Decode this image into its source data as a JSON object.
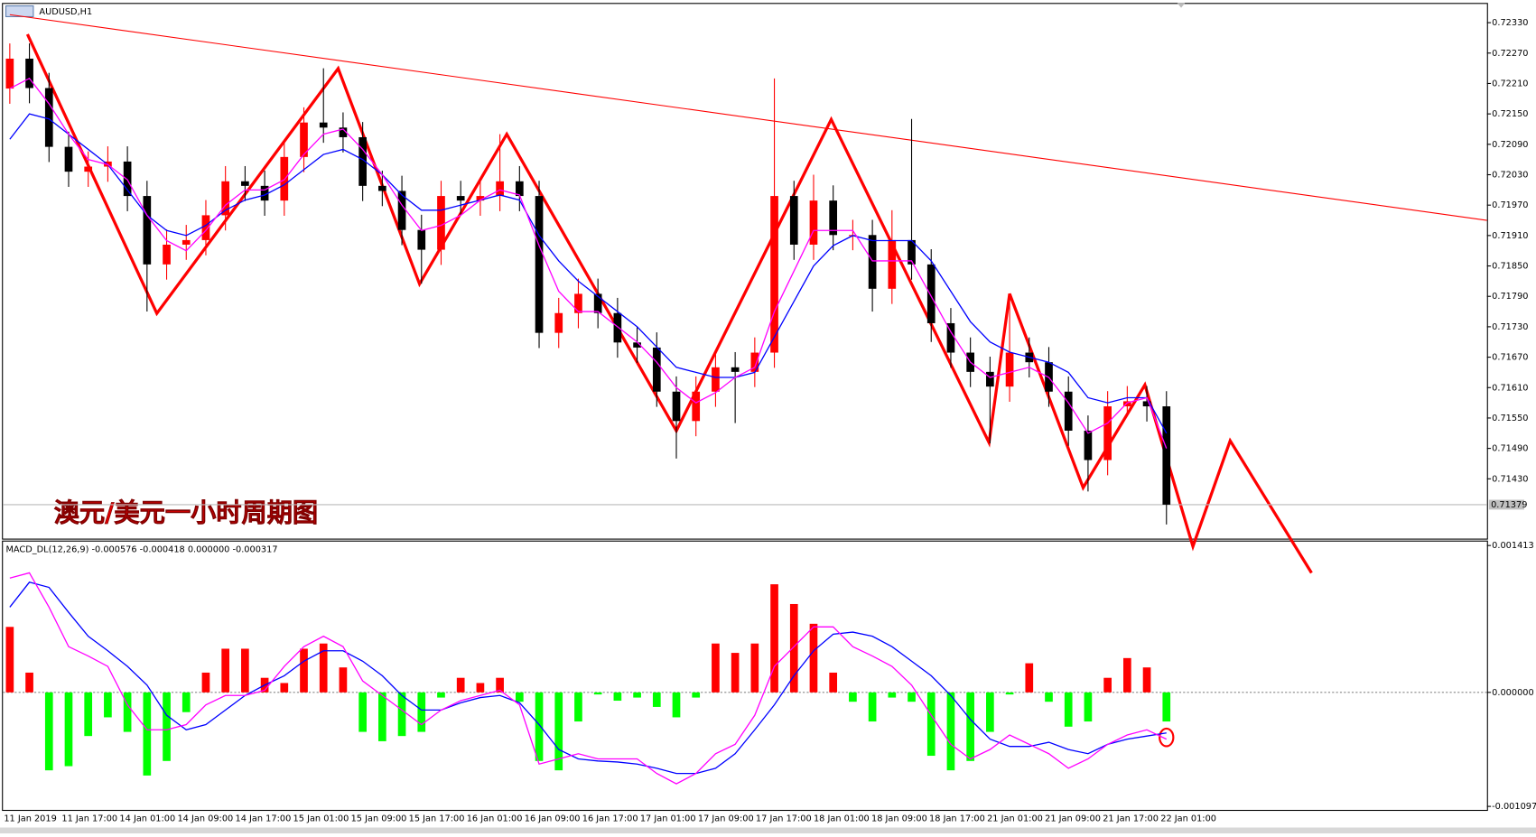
{
  "chart_data": [
    {
      "type": "candlestick",
      "title": "AUDUSD,H1",
      "annotation": "澳元/美元一小时周期图",
      "up_color": "#ff0000",
      "down_color": "#000000",
      "open": [
        0.722,
        0.72259,
        0.72201,
        0.72085,
        0.72036,
        0.72046,
        0.72056,
        0.71988,
        0.71853,
        0.71892,
        0.71901,
        0.7195,
        0.72017,
        0.72008,
        0.71979,
        0.72065,
        0.72133,
        0.72123,
        0.72104,
        0.72008,
        0.71998,
        0.71921,
        0.71882,
        0.71988,
        0.71979,
        0.71988,
        0.72017,
        0.71988,
        0.71718,
        0.71757,
        0.71795,
        0.71757,
        0.71699,
        0.71689,
        0.71602,
        0.71544,
        0.71602,
        0.7165,
        0.71641,
        0.71679,
        0.71988,
        0.71892,
        0.71979,
        0.71911,
        0.71911,
        0.71805,
        0.71901,
        0.71853,
        0.71737,
        0.71679,
        0.71641,
        0.71612,
        0.71679,
        0.7166,
        0.71602,
        0.71525,
        0.71467,
        0.71573,
        0.71583,
        0.71573
      ],
      "high": [
        0.72289,
        0.72289,
        0.72231,
        0.72115,
        0.72076,
        0.72086,
        0.72086,
        0.72018,
        0.71922,
        0.71931,
        0.7198,
        0.72047,
        0.72047,
        0.72038,
        0.72095,
        0.72163,
        0.7224,
        0.72153,
        0.72134,
        0.72038,
        0.72028,
        0.71951,
        0.72018,
        0.72018,
        0.72018,
        0.7211,
        0.72047,
        0.72018,
        0.71787,
        0.71825,
        0.71825,
        0.71787,
        0.71729,
        0.71719,
        0.71632,
        0.71632,
        0.7168,
        0.7168,
        0.71709,
        0.7222,
        0.72018,
        0.7203,
        0.72009,
        0.71941,
        0.71941,
        0.7196,
        0.7214,
        0.71883,
        0.71767,
        0.71709,
        0.71671,
        0.71795,
        0.71709,
        0.7169,
        0.71632,
        0.71555,
        0.71603,
        0.71613,
        0.71613,
        0.71603
      ],
      "low": [
        0.7217,
        0.72171,
        0.72055,
        0.72006,
        0.72006,
        0.72016,
        0.71958,
        0.7176,
        0.71823,
        0.71862,
        0.71871,
        0.7192,
        0.71978,
        0.71949,
        0.71949,
        0.72035,
        0.72093,
        0.72074,
        0.71978,
        0.71968,
        0.71891,
        0.71815,
        0.71852,
        0.71949,
        0.71949,
        0.71958,
        0.71958,
        0.71688,
        0.71688,
        0.71727,
        0.71727,
        0.71669,
        0.71659,
        0.71572,
        0.7147,
        0.71514,
        0.71572,
        0.7154,
        0.71611,
        0.71649,
        0.71862,
        0.71862,
        0.71881,
        0.71881,
        0.7176,
        0.71775,
        0.71823,
        0.717,
        0.71649,
        0.71611,
        0.715,
        0.71582,
        0.7163,
        0.71572,
        0.71495,
        0.71405,
        0.71437,
        0.71553,
        0.71543,
        0.7134
      ],
      "close": [
        0.72259,
        0.72201,
        0.72085,
        0.72036,
        0.72046,
        0.72056,
        0.71988,
        0.71853,
        0.71892,
        0.71901,
        0.7195,
        0.72017,
        0.72008,
        0.71979,
        0.72065,
        0.72133,
        0.72123,
        0.72104,
        0.72008,
        0.71998,
        0.71921,
        0.71882,
        0.71988,
        0.71979,
        0.71988,
        0.72017,
        0.71988,
        0.71718,
        0.71757,
        0.71795,
        0.71757,
        0.71699,
        0.71689,
        0.71602,
        0.71544,
        0.71602,
        0.7165,
        0.71641,
        0.71679,
        0.71988,
        0.71892,
        0.71979,
        0.71911,
        0.71911,
        0.71805,
        0.71901,
        0.71853,
        0.71737,
        0.71679,
        0.71641,
        0.71612,
        0.71679,
        0.7166,
        0.71602,
        0.71525,
        0.71467,
        0.71573,
        0.71583,
        0.71573,
        0.71379
      ],
      "lines": [
        {
          "color": "#0000ff",
          "values": [
            0.721,
            0.7215,
            0.7214,
            0.7211,
            0.7208,
            0.7205,
            0.72,
            0.7195,
            0.7192,
            0.7191,
            0.7193,
            0.7196,
            0.7198,
            0.7199,
            0.7201,
            0.7204,
            0.7207,
            0.7208,
            0.7206,
            0.7203,
            0.7199,
            0.7196,
            0.7196,
            0.7197,
            0.7198,
            0.7199,
            0.7198,
            0.7191,
            0.7186,
            0.7182,
            0.7179,
            0.7176,
            0.7173,
            0.7169,
            0.7165,
            0.7164,
            0.7163,
            0.7163,
            0.7164,
            0.7171,
            0.7178,
            0.7185,
            0.7189,
            0.7191,
            0.719,
            0.719,
            0.719,
            0.7186,
            0.718,
            0.7174,
            0.717,
            0.7168,
            0.7167,
            0.7166,
            0.7164,
            0.7159,
            0.7158,
            0.7159,
            0.7159,
            0.7152
          ]
        },
        {
          "color": "#ff00ff",
          "values": [
            0.722,
            0.7222,
            0.7217,
            0.7211,
            0.7206,
            0.7205,
            0.7202,
            0.7195,
            0.719,
            0.7188,
            0.7192,
            0.7197,
            0.72,
            0.72,
            0.7202,
            0.7207,
            0.7211,
            0.7212,
            0.7208,
            0.7203,
            0.7197,
            0.7192,
            0.7193,
            0.7195,
            0.7198,
            0.72,
            0.7199,
            0.7189,
            0.718,
            0.7176,
            0.7176,
            0.7173,
            0.717,
            0.7166,
            0.7161,
            0.7158,
            0.716,
            0.7163,
            0.7165,
            0.7176,
            0.7184,
            0.7192,
            0.7192,
            0.7192,
            0.7186,
            0.7186,
            0.7186,
            0.7179,
            0.7172,
            0.7166,
            0.7163,
            0.7164,
            0.7165,
            0.7163,
            0.7158,
            0.7152,
            0.7154,
            0.7158,
            0.7159,
            0.7149
          ]
        }
      ],
      "ylim": [
        0.71312,
        0.72367
      ],
      "yticks": [
        {
          "value": 0.7233,
          "label": "0.72330"
        },
        {
          "value": 0.7227,
          "label": "0.72270"
        },
        {
          "value": 0.7221,
          "label": "0.72210"
        },
        {
          "value": 0.7215,
          "label": "0.72150"
        },
        {
          "value": 0.7209,
          "label": "0.72090"
        },
        {
          "value": 0.7203,
          "label": "0.72030"
        },
        {
          "value": 0.7197,
          "label": "0.71970"
        },
        {
          "value": 0.7191,
          "label": "0.71910"
        },
        {
          "value": 0.7185,
          "label": "0.71850"
        },
        {
          "value": 0.7179,
          "label": "0.71790"
        },
        {
          "value": 0.7173,
          "label": "0.71730"
        },
        {
          "value": 0.7167,
          "label": "0.71670"
        },
        {
          "value": 0.7161,
          "label": "0.71610"
        },
        {
          "value": 0.7155,
          "label": "0.71550"
        },
        {
          "value": 0.7149,
          "label": "0.71490"
        },
        {
          "value": 0.7143,
          "label": "0.71430"
        }
      ],
      "last_price": 0.71379,
      "xticks": [
        "11 Jan 2019",
        "11 Jan 17:00",
        "14 Jan 01:00",
        "14 Jan 09:00",
        "14 Jan 17:00",
        "15 Jan 01:00",
        "15 Jan 09:00",
        "15 Jan 17:00",
        "16 Jan 01:00",
        "16 Jan 09:00",
        "16 Jan 17:00",
        "17 Jan 01:00",
        "17 Jan 09:00",
        "17 Jan 17:00",
        "18 Jan 01:00",
        "18 Jan 09:00",
        "18 Jan 17:00",
        "21 Jan 01:00",
        "21 Jan 09:00",
        "21 Jan 17:00",
        "22 Jan 01:00"
      ]
    },
    {
      "type": "macd",
      "title": "MACD_DL(12,26,9) -0.000576 -0.000418 0.000000 -0.000317",
      "pos_color": "#ff0000",
      "neg_color": "#00ff00",
      "values": [
        0.00063,
        0.00019,
        -0.00075,
        -0.00071,
        -0.00042,
        -0.00024,
        -0.00038,
        -0.0008,
        -0.00066,
        -0.00019,
        0.00019,
        0.00042,
        0.00042,
        0.00014,
        9e-05,
        0.00042,
        0.00047,
        0.00024,
        -0.00038,
        -0.00047,
        -0.00042,
        -0.00038,
        -5e-05,
        0.00014,
        9e-05,
        0.00014,
        -9e-05,
        -0.00066,
        -0.00075,
        -0.00028,
        -2e-05,
        -8e-05,
        -5e-05,
        -0.00014,
        -0.00024,
        -5e-05,
        0.00047,
        0.00038,
        0.00047,
        0.00104,
        0.00085,
        0.00066,
        0.00019,
        -9e-05,
        -0.00028,
        -5e-05,
        -9e-05,
        -0.00061,
        -0.00075,
        -0.00066,
        -0.00038,
        -2e-05,
        0.00028,
        -9e-05,
        -0.00033,
        -0.00028,
        0.00014,
        0.00033,
        0.00024,
        -0.00028
      ],
      "series": [
        {
          "color": "#0000ff",
          "values": [
            0.00082,
            0.00106,
            0.00101,
            0.00077,
            0.00054,
            0.0004,
            0.00025,
            7e-05,
            -0.00022,
            -0.00036,
            -0.00031,
            -0.00017,
            -3e-05,
            7e-05,
            0.00016,
            0.0003,
            0.0004,
            0.0004,
            0.0003,
            0.00016,
            -3e-05,
            -0.00017,
            -0.00017,
            -0.0001,
            -5e-05,
            -3e-05,
            -0.0001,
            -0.00031,
            -0.00055,
            -0.00064,
            -0.00066,
            -0.00067,
            -0.00069,
            -0.00073,
            -0.00078,
            -0.00078,
            -0.00073,
            -0.00059,
            -0.00036,
            -0.00012,
            0.00016,
            0.0004,
            0.00056,
            0.00058,
            0.00054,
            0.00044,
            0.0003,
            0.00016,
            -3e-05,
            -0.00026,
            -0.00045,
            -0.00052,
            -0.00052,
            -0.00048,
            -0.00055,
            -0.00059,
            -0.0005,
            -0.00045,
            -0.00042,
            -0.00039
          ]
        },
        {
          "color": "#ff00ff",
          "values": [
            0.0011,
            0.00115,
            0.00082,
            0.00044,
            0.00035,
            0.00025,
            -0.00012,
            -0.00036,
            -0.00036,
            -0.00031,
            -0.00012,
            -3e-05,
            -3e-05,
            2e-05,
            0.00025,
            0.00044,
            0.00054,
            0.00044,
            0.00011,
            -3e-05,
            -0.00017,
            -0.00031,
            -0.00017,
            -8e-05,
            -3e-05,
            2e-05,
            -0.00012,
            -0.00069,
            -0.00064,
            -0.00059,
            -0.00064,
            -0.00064,
            -0.00064,
            -0.00078,
            -0.00088,
            -0.00078,
            -0.00059,
            -0.0005,
            -0.00022,
            0.00025,
            0.00044,
            0.00063,
            0.00063,
            0.00044,
            0.00035,
            0.00025,
            7e-05,
            -0.00022,
            -0.0005,
            -0.00064,
            -0.00055,
            -0.00041,
            -0.0005,
            -0.00059,
            -0.00073,
            -0.00064,
            -0.0005,
            -0.00041,
            -0.00036,
            -0.00045
          ]
        }
      ],
      "ylim": [
        -0.00114,
        0.001451
      ],
      "yticks": [
        0.001413,
        {
          "value": 0,
          "label": "0.000000"
        },
        -0.001097
      ]
    }
  ]
}
